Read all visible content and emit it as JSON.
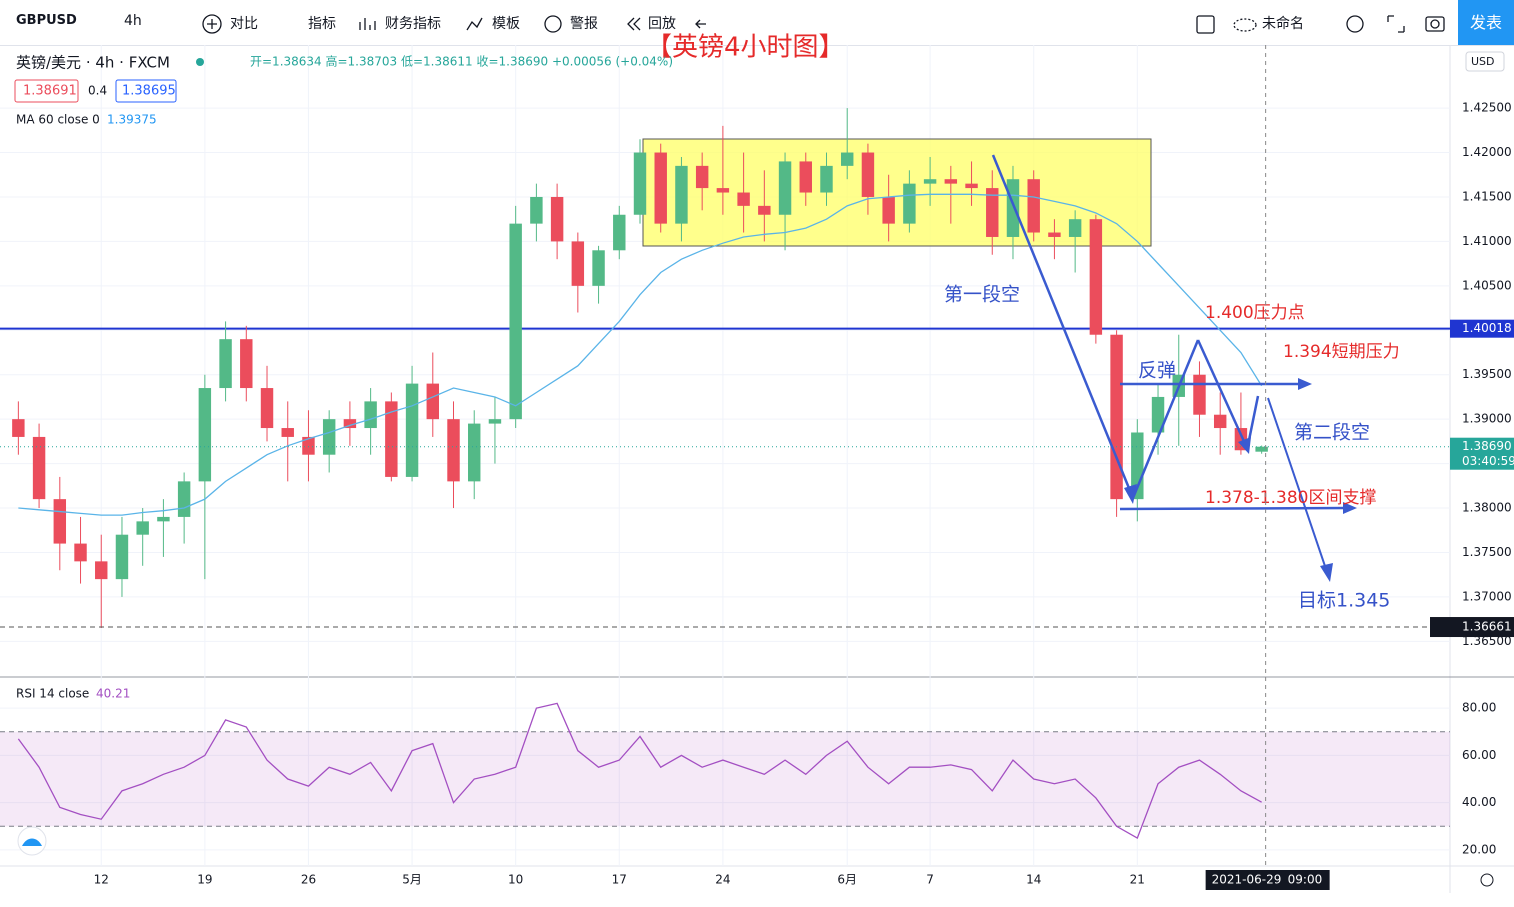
{
  "toolbar": {
    "symbol": "GBPUSD",
    "interval": "4h",
    "items": [
      "对比",
      "指标",
      "财务指标",
      "模板",
      "警报",
      "回放"
    ],
    "layout_name": "未命名",
    "publish": "发表"
  },
  "chart_data": {
    "type": "candlestick",
    "symbol_label": "英镑/美元 · 4h · FXCM",
    "ohlc_label": "开=1.38634 高=1.38703 低=1.38611 收=1.38690 +0.00056 (+0.04%)",
    "bid": "1.38691",
    "spread": "0.4",
    "ask": "1.38695",
    "currency": "USD",
    "categories": [
      null,
      null,
      null,
      null,
      "12",
      null,
      null,
      null,
      null,
      "19",
      null,
      null,
      null,
      null,
      "26",
      null,
      null,
      null,
      null,
      "5月",
      null,
      null,
      null,
      null,
      "10",
      null,
      null,
      null,
      null,
      "17",
      null,
      null,
      null,
      null,
      "24",
      null,
      null,
      null,
      null,
      null,
      "6月",
      null,
      null,
      null,
      "7",
      null,
      null,
      null,
      null,
      "14",
      null,
      null,
      null,
      null,
      "21",
      null,
      null,
      null,
      null,
      null,
      null
    ],
    "open": [
      1.39,
      1.388,
      1.381,
      1.376,
      1.374,
      1.372,
      1.377,
      1.3785,
      1.379,
      1.383,
      1.3935,
      1.399,
      1.3935,
      1.389,
      1.388,
      1.386,
      1.39,
      1.389,
      1.392,
      1.3835,
      1.394,
      1.39,
      1.383,
      1.3895,
      1.39,
      1.412,
      1.415,
      1.41,
      1.405,
      1.409,
      1.413,
      1.42,
      1.412,
      1.4185,
      1.416,
      1.4155,
      1.414,
      1.413,
      1.419,
      1.4155,
      1.4185,
      1.42,
      1.415,
      1.412,
      1.4165,
      1.417,
      1.4165,
      1.416,
      1.4105,
      1.417,
      1.411,
      1.4105,
      1.4125,
      1.3995,
      1.381,
      1.3885,
      1.3925,
      1.395,
      1.3905,
      1.389,
      1.38634
    ],
    "high": [
      1.392,
      1.3895,
      1.3835,
      1.379,
      1.377,
      1.379,
      1.38,
      1.381,
      1.384,
      1.395,
      1.401,
      1.4005,
      1.396,
      1.392,
      1.391,
      1.391,
      1.392,
      1.3935,
      1.393,
      1.396,
      1.3975,
      1.392,
      1.391,
      1.3925,
      1.414,
      1.4165,
      1.4165,
      1.411,
      1.4095,
      1.414,
      1.4215,
      1.421,
      1.4195,
      1.42,
      1.423,
      1.42,
      1.418,
      1.42,
      1.42,
      1.42,
      1.425,
      1.421,
      1.4175,
      1.418,
      1.4195,
      1.4185,
      1.419,
      1.418,
      1.4185,
      1.418,
      1.4125,
      1.4135,
      1.413,
      1.4,
      1.39,
      1.394,
      1.3995,
      1.3965,
      1.393,
      1.393,
      1.38703
    ],
    "low": [
      1.386,
      1.38,
      1.373,
      1.3715,
      1.3665,
      1.37,
      1.3735,
      1.3745,
      1.376,
      1.372,
      1.392,
      1.392,
      1.3875,
      1.383,
      1.383,
      1.384,
      1.387,
      1.386,
      1.383,
      1.383,
      1.388,
      1.38,
      1.381,
      1.385,
      1.389,
      1.41,
      1.408,
      1.402,
      1.403,
      1.408,
      1.412,
      1.411,
      1.41,
      1.4135,
      1.413,
      1.411,
      1.41,
      1.409,
      1.414,
      1.414,
      1.417,
      1.413,
      1.41,
      1.411,
      1.414,
      1.412,
      1.414,
      1.4085,
      1.408,
      1.41,
      1.408,
      1.4065,
      1.3985,
      1.379,
      1.3785,
      1.386,
      1.387,
      1.388,
      1.386,
      1.386,
      1.38611
    ],
    "close": [
      1.388,
      1.381,
      1.376,
      1.374,
      1.372,
      1.377,
      1.3785,
      1.379,
      1.383,
      1.3935,
      1.399,
      1.3935,
      1.389,
      1.388,
      1.386,
      1.39,
      1.389,
      1.392,
      1.3835,
      1.394,
      1.39,
      1.383,
      1.3895,
      1.39,
      1.412,
      1.415,
      1.41,
      1.405,
      1.409,
      1.413,
      1.42,
      1.412,
      1.4185,
      1.416,
      1.4155,
      1.414,
      1.413,
      1.419,
      1.4155,
      1.4185,
      1.42,
      1.415,
      1.412,
      1.4165,
      1.417,
      1.4165,
      1.416,
      1.4105,
      1.417,
      1.411,
      1.4105,
      1.4125,
      1.3995,
      1.381,
      1.3885,
      1.3925,
      1.395,
      1.3905,
      1.389,
      1.3865,
      1.3869
    ],
    "up_color": "#53b987",
    "down_color": "#eb4d5c",
    "ylim": [
      1.3611,
      1.4321
    ],
    "yticks": [
      {
        "value": 1.425,
        "label": "1.42500"
      },
      {
        "value": 1.42,
        "label": "1.42000"
      },
      {
        "value": 1.415,
        "label": "1.41500"
      },
      {
        "value": 1.41,
        "label": "1.41000"
      },
      {
        "value": 1.405,
        "label": "1.40500"
      },
      {
        "value": 1.4,
        "label": "1.40000"
      },
      {
        "value": 1.395,
        "label": "1.39500"
      },
      {
        "value": 1.39,
        "label": "1.39000"
      },
      {
        "value": 1.385,
        "label": "1.38500"
      },
      {
        "value": 1.38,
        "label": "1.38000"
      },
      {
        "value": 1.375,
        "label": "1.37500"
      },
      {
        "value": 1.37,
        "label": "1.37000"
      },
      {
        "value": 1.365,
        "label": "1.36500"
      }
    ],
    "grid": true,
    "ma": {
      "name": "MA 60 close 0",
      "value_label": "1.39375",
      "color": "#5ab4e8",
      "values": [
        1.38,
        1.3798,
        1.3796,
        1.3794,
        1.3792,
        1.3792,
        1.3795,
        1.3797,
        1.38,
        1.381,
        1.383,
        1.3845,
        1.386,
        1.387,
        1.3878,
        1.3885,
        1.3893,
        1.39,
        1.3908,
        1.3915,
        1.3925,
        1.3935,
        1.393,
        1.3925,
        1.3915,
        1.393,
        1.3945,
        1.396,
        1.3985,
        1.401,
        1.404,
        1.4065,
        1.408,
        1.409,
        1.4098,
        1.4105,
        1.4108,
        1.411,
        1.4115,
        1.4125,
        1.414,
        1.4148,
        1.415,
        1.4152,
        1.4153,
        1.4153,
        1.4153,
        1.4152,
        1.4152,
        1.415,
        1.4145,
        1.414,
        1.4132,
        1.412,
        1.41,
        1.4075,
        1.405,
        1.4025,
        1.4,
        1.3975,
        1.39375
      ]
    },
    "hline": {
      "value": 1.40018,
      "label": "1.40018",
      "color": "#1f35d1"
    },
    "last_price": {
      "value": 1.3869,
      "label": "1.38690",
      "countdown": "03:40:59",
      "color": "#26a69a"
    },
    "crosshair": {
      "value": 1.36661,
      "label": "1.36661"
    },
    "date_label": "2021-06-29",
    "time_label": "09:00",
    "rsi": {
      "name": "RSI 14 close",
      "value_label": "40.21",
      "color": "#a34fc2",
      "band": [
        30,
        70
      ],
      "ylim": [
        13.2,
        91.9
      ],
      "yticks": [
        {
          "value": 20,
          "label": "20.00"
        },
        {
          "value": 40,
          "label": "40.00"
        },
        {
          "value": 60,
          "label": "60.00"
        },
        {
          "value": 80,
          "label": "80.00"
        }
      ],
      "values": [
        67,
        55,
        38,
        35,
        33,
        45,
        48,
        52,
        55,
        60,
        75,
        72,
        58,
        50,
        47,
        55,
        52,
        57,
        45,
        62,
        65,
        40,
        50,
        52,
        55,
        80,
        82,
        62,
        55,
        58,
        68,
        55,
        60,
        55,
        58,
        55,
        52,
        58,
        52,
        60,
        66,
        55,
        48,
        55,
        55,
        56,
        54,
        45,
        58,
        50,
        48,
        50,
        42,
        30,
        25,
        48,
        55,
        58,
        52,
        45,
        40.21
      ]
    }
  },
  "annotations": {
    "title": "【英镑4小时图】",
    "first_short": "第一段空",
    "resistance": "1.400压力点",
    "rebound": "反弹",
    "short_resistance": "1.394短期压力",
    "second_short": "第二段空",
    "support": "1.378-1.380区间支撑",
    "target": "目标1.345"
  }
}
